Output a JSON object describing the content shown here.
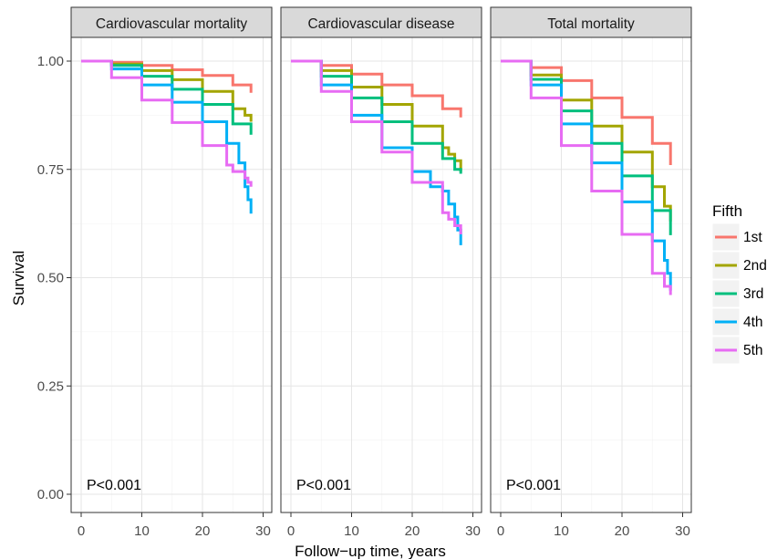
{
  "chart_data": {
    "type": "line",
    "xlabel": "Follow−up time, years",
    "ylabel": "Survival",
    "xlim": [
      0,
      30
    ],
    "ylim": [
      0.0,
      1.0
    ],
    "x_ticks": [
      0,
      10,
      20,
      30
    ],
    "y_ticks": [
      "0.00",
      "0.25",
      "0.50",
      "0.75",
      "1.00"
    ],
    "y_tick_values": [
      0,
      0.25,
      0.5,
      0.75,
      1.0
    ],
    "grid": true,
    "step": true,
    "legend": {
      "title": "Fifth",
      "placement": "right",
      "entries": [
        "1st",
        "2nd",
        "3rd",
        "4th",
        "5th"
      ],
      "colors": [
        "#F8766D",
        "#A3A500",
        "#00BF7D",
        "#00B0F6",
        "#E76BF3"
      ]
    },
    "panels": [
      {
        "title": "Cardiovascular mortality",
        "annotation": "P<0.001",
        "series": [
          {
            "name": "1st",
            "x": [
              0,
              5,
              10,
              15,
              20,
              25,
              28
            ],
            "values": [
              1.0,
              0.997,
              0.99,
              0.98,
              0.967,
              0.945,
              0.927
            ]
          },
          {
            "name": "2nd",
            "x": [
              0,
              5,
              10,
              15,
              20,
              25,
              27,
              28
            ],
            "values": [
              1.0,
              0.993,
              0.978,
              0.957,
              0.93,
              0.89,
              0.875,
              0.86
            ]
          },
          {
            "name": "3rd",
            "x": [
              0,
              5,
              10,
              15,
              20,
              25,
              28
            ],
            "values": [
              1.0,
              0.99,
              0.965,
              0.935,
              0.9,
              0.855,
              0.83
            ]
          },
          {
            "name": "4th",
            "x": [
              0,
              5,
              10,
              15,
              20,
              24,
              26,
              27,
              27.5,
              28
            ],
            "values": [
              1.0,
              0.982,
              0.945,
              0.905,
              0.86,
              0.81,
              0.765,
              0.71,
              0.68,
              0.648
            ]
          },
          {
            "name": "5th",
            "x": [
              0,
              5,
              10,
              15,
              20,
              24,
              25,
              26,
              27,
              27.5,
              28
            ],
            "values": [
              1.0,
              0.962,
              0.91,
              0.858,
              0.805,
              0.76,
              0.745,
              0.745,
              0.73,
              0.72,
              0.71
            ]
          }
        ]
      },
      {
        "title": "Cardiovascular disease",
        "annotation": "P<0.001",
        "series": [
          {
            "name": "1st",
            "x": [
              0,
              5,
              10,
              15,
              20,
              25,
              28
            ],
            "values": [
              1.0,
              0.99,
              0.97,
              0.945,
              0.92,
              0.89,
              0.87
            ]
          },
          {
            "name": "2nd",
            "x": [
              0,
              5,
              10,
              15,
              20,
              25,
              26,
              27,
              28
            ],
            "values": [
              1.0,
              0.978,
              0.94,
              0.9,
              0.85,
              0.8,
              0.785,
              0.77,
              0.745
            ]
          },
          {
            "name": "3rd",
            "x": [
              0,
              5,
              10,
              15,
              20,
              25,
              27,
              28
            ],
            "values": [
              1.0,
              0.965,
              0.915,
              0.86,
              0.81,
              0.775,
              0.75,
              0.74
            ]
          },
          {
            "name": "4th",
            "x": [
              0,
              5,
              10,
              15,
              20,
              23,
              25,
              26,
              27,
              27.5,
              28
            ],
            "values": [
              1.0,
              0.945,
              0.875,
              0.8,
              0.745,
              0.71,
              0.7,
              0.67,
              0.64,
              0.61,
              0.575
            ]
          },
          {
            "name": "5th",
            "x": [
              0,
              5,
              10,
              15,
              20,
              25,
              26,
              27,
              28
            ],
            "values": [
              1.0,
              0.93,
              0.86,
              0.79,
              0.72,
              0.65,
              0.635,
              0.62,
              0.6
            ]
          }
        ]
      },
      {
        "title": "Total mortality",
        "annotation": "P<0.001",
        "series": [
          {
            "name": "1st",
            "x": [
              0,
              5,
              10,
              15,
              20,
              25,
              28
            ],
            "values": [
              1.0,
              0.985,
              0.955,
              0.915,
              0.87,
              0.81,
              0.76
            ]
          },
          {
            "name": "2nd",
            "x": [
              0,
              5,
              10,
              15,
              20,
              25,
              27,
              28
            ],
            "values": [
              1.0,
              0.968,
              0.91,
              0.85,
              0.79,
              0.71,
              0.665,
              0.63
            ]
          },
          {
            "name": "3rd",
            "x": [
              0,
              5,
              10,
              15,
              20,
              25,
              28
            ],
            "values": [
              1.0,
              0.958,
              0.885,
              0.81,
              0.735,
              0.655,
              0.598
            ]
          },
          {
            "name": "4th",
            "x": [
              0,
              5,
              10,
              15,
              20,
              25,
              27,
              27.5,
              28
            ],
            "values": [
              1.0,
              0.945,
              0.855,
              0.765,
              0.675,
              0.585,
              0.54,
              0.51,
              0.47
            ]
          },
          {
            "name": "5th",
            "x": [
              0,
              5,
              10,
              15,
              20,
              25,
              27,
              28
            ],
            "values": [
              1.0,
              0.915,
              0.805,
              0.7,
              0.6,
              0.51,
              0.48,
              0.46
            ]
          }
        ]
      }
    ]
  }
}
